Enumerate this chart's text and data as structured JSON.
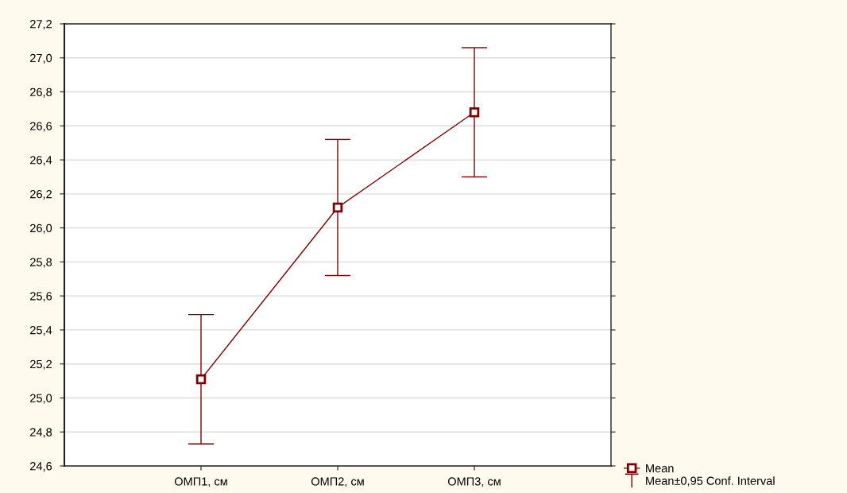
{
  "chart_data": {
    "type": "line",
    "categories": [
      "ОМП1, см",
      "ОМП2, см",
      "ОМП3, см"
    ],
    "series": [
      {
        "name": "Mean",
        "color": "#800000",
        "values": [
          25.11,
          26.12,
          26.68
        ],
        "errors": [
          0.38,
          0.4,
          0.38
        ]
      }
    ],
    "ylim": [
      24.6,
      27.2
    ],
    "yticks": [
      {
        "value": 24.6,
        "label": "24,6"
      },
      {
        "value": 24.8,
        "label": "24,8"
      },
      {
        "value": 25.0,
        "label": "25,0"
      },
      {
        "value": 25.2,
        "label": "25,2"
      },
      {
        "value": 25.4,
        "label": "25,4"
      },
      {
        "value": 25.6,
        "label": "25,6"
      },
      {
        "value": 25.8,
        "label": "25,8"
      },
      {
        "value": 26.0,
        "label": "26,0"
      },
      {
        "value": 26.2,
        "label": "26,2"
      },
      {
        "value": 26.4,
        "label": "26,4"
      },
      {
        "value": 26.6,
        "label": "26,6"
      },
      {
        "value": 26.8,
        "label": "26,8"
      },
      {
        "value": 27.0,
        "label": "27,0"
      },
      {
        "value": 27.2,
        "label": "27,2"
      }
    ],
    "grid": "y",
    "legend": "bottom right",
    "marker": "square",
    "annotations": [
      "Mean±0,95 Conf. Interval"
    ]
  }
}
